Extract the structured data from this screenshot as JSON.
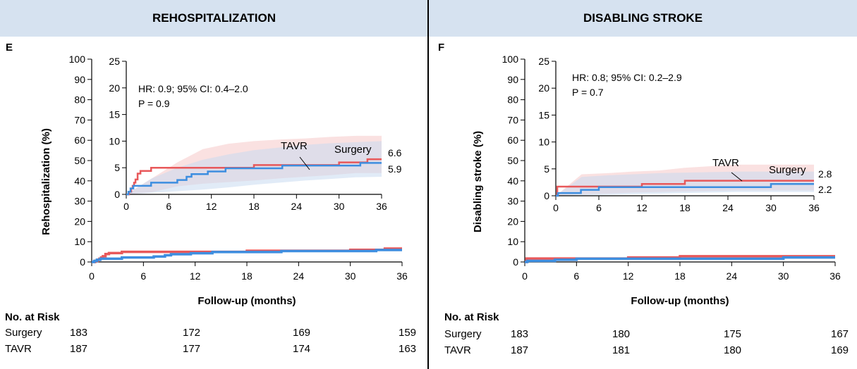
{
  "panels": [
    {
      "header": "REHOSPITALIZATION",
      "letter": "E",
      "ylabel": "Rehospitalization (%)",
      "stats": [
        "HR: 0.9; 95% CI: 0.4–2.0",
        "P = 0.9"
      ],
      "end_labels": {
        "Surgery": "6.6",
        "TAVR": "5.9"
      },
      "risk": {
        "title": "No. at Risk",
        "rows": [
          {
            "label": "Surgery",
            "values": [
              "183",
              "172",
              "169",
              "159"
            ]
          },
          {
            "label": "TAVR",
            "values": [
              "187",
              "177",
              "174",
              "163"
            ]
          }
        ]
      }
    },
    {
      "header": "DISABLING STROKE",
      "letter": "F",
      "ylabel": "Disabling stroke (%)",
      "stats": [
        "HR: 0.8; 95% CI: 0.2–2.9",
        "P = 0.7"
      ],
      "end_labels": {
        "Surgery": "2.8",
        "TAVR": "2.2"
      },
      "risk": {
        "title": "No. at Risk",
        "rows": [
          {
            "label": "Surgery",
            "values": [
              "183",
              "180",
              "175",
              "167"
            ]
          },
          {
            "label": "TAVR",
            "values": [
              "187",
              "181",
              "180",
              "169"
            ]
          }
        ]
      }
    }
  ],
  "colors": {
    "surgery": "#e8585a",
    "tavr": "#3d8ee0",
    "surgery_band": "#f6c9c9",
    "tavr_band": "#c9dbf1",
    "header_bg": "#d6e2f0"
  },
  "chart_data": [
    {
      "type": "line",
      "title": "REHOSPITALIZATION",
      "xlabel": "Follow-up (months)",
      "ylabel": "Rehospitalization (%)",
      "xlim": [
        0,
        36
      ],
      "ylim": [
        0,
        100
      ],
      "xticks": [
        "0",
        "6",
        "12",
        "18",
        "24",
        "30",
        "36"
      ],
      "yticks": [
        "0",
        "10",
        "20",
        "30",
        "40",
        "50",
        "60",
        "70",
        "80",
        "90",
        "100"
      ],
      "inset": {
        "xlim": [
          0,
          36
        ],
        "ylim": [
          0,
          25
        ],
        "xticks": [
          "0",
          "6",
          "12",
          "18",
          "24",
          "30",
          "36"
        ],
        "yticks": [
          "0",
          "5",
          "10",
          "15",
          "20",
          "25"
        ]
      },
      "series": [
        {
          "name": "Surgery",
          "x": [
            0,
            0.4,
            0.7,
            0.9,
            1.1,
            1.3,
            1.6,
            2.0,
            3.5,
            18,
            30,
            34,
            36
          ],
          "y": [
            0,
            0.5,
            1.1,
            1.6,
            2.2,
            2.8,
            3.9,
            4.4,
            5.0,
            5.5,
            6.0,
            6.6,
            6.6
          ],
          "ci_upper": [
            0,
            3,
            6,
            8.5,
            9.5,
            10,
            10.3,
            10.5,
            10.8,
            11,
            11
          ],
          "ci_lower": [
            0,
            0.4,
            1.5,
            2,
            2.3,
            2.6,
            3,
            3.3,
            3.6,
            4,
            4
          ]
        },
        {
          "name": "TAVR",
          "x": [
            0,
            0.3,
            0.6,
            1.0,
            3.5,
            7.2,
            8.5,
            9.2,
            11.5,
            14,
            22,
            29,
            33,
            36
          ],
          "y": [
            0,
            0.5,
            1.1,
            1.6,
            2.2,
            2.7,
            3.3,
            3.8,
            4.3,
            4.9,
            5.4,
            5.4,
            5.9,
            5.9
          ],
          "ci_upper": [
            0,
            3,
            5,
            6.5,
            7.5,
            8.3,
            8.8,
            9.3,
            9.6,
            9.8,
            10
          ],
          "ci_lower": [
            0,
            0.3,
            0.6,
            0.9,
            1.3,
            1.8,
            2.2,
            2.6,
            2.9,
            3.2,
            3.3
          ]
        }
      ],
      "annotations": [
        "TAVR",
        "Surgery",
        "6.6",
        "5.9",
        "HR: 0.9; 95% CI: 0.4–2.0",
        "P = 0.9"
      ]
    },
    {
      "type": "line",
      "title": "DISABLING STROKE",
      "xlabel": "Follow-up (months)",
      "ylabel": "Disabling stroke (%)",
      "xlim": [
        0,
        36
      ],
      "ylim": [
        0,
        100
      ],
      "xticks": [
        "0",
        "6",
        "12",
        "18",
        "24",
        "30",
        "36"
      ],
      "yticks": [
        "0",
        "10",
        "20",
        "30",
        "40",
        "50",
        "60",
        "70",
        "80",
        "90",
        "100"
      ],
      "inset": {
        "xlim": [
          0,
          36
        ],
        "ylim": [
          0,
          25
        ],
        "xticks": [
          "0",
          "6",
          "12",
          "18",
          "24",
          "30",
          "36"
        ],
        "yticks": [
          "0",
          "5",
          "10",
          "15",
          "20",
          "25"
        ]
      },
      "series": [
        {
          "name": "Surgery",
          "x": [
            0,
            0.2,
            12,
            18,
            20,
            36
          ],
          "y": [
            0,
            1.7,
            2.2,
            2.8,
            2.8,
            2.8
          ],
          "ci_upper": [
            0,
            4,
            4.2,
            4.5,
            4.7,
            5.2,
            5.5,
            5.8,
            5.8,
            5.8,
            5.8
          ],
          "ci_lower": [
            0,
            0.3,
            0.4,
            0.6,
            0.7,
            0.8,
            0.9,
            1.0,
            1.0,
            1.0,
            1.0
          ]
        },
        {
          "name": "TAVR",
          "x": [
            0,
            0.3,
            3.5,
            6,
            30,
            36
          ],
          "y": [
            0,
            0.5,
            1.1,
            1.6,
            2.2,
            2.2
          ],
          "ci_upper": [
            0,
            3.5,
            3.8,
            4.0,
            4.2,
            4.3,
            4.4,
            4.5,
            4.5,
            4.5,
            4.5
          ],
          "ci_lower": [
            0,
            0.1,
            0.2,
            0.3,
            0.4,
            0.5,
            0.6,
            0.7,
            0.7,
            0.7,
            0.7
          ]
        }
      ],
      "annotations": [
        "TAVR",
        "Surgery",
        "2.8",
        "2.2",
        "HR: 0.8; 95% CI: 0.2–2.9",
        "P = 0.7"
      ]
    }
  ]
}
